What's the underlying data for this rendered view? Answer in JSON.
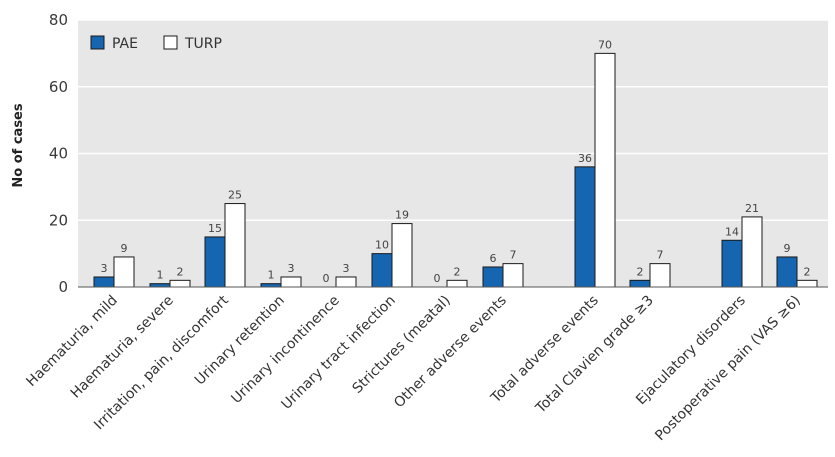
{
  "chart_data": {
    "type": "bar",
    "ylabel": "No of cases",
    "ylim": [
      0,
      80
    ],
    "yticks": [
      0,
      20,
      40,
      60,
      80
    ],
    "grid": true,
    "legend_position": "top-left",
    "categories": [
      "Haematuria, mild",
      "Haematuria, severe",
      "Irritation, pain, discomfort",
      "Urinary retention",
      "Urinary incontinence",
      "Urinary tract infection",
      "Strictures (meatal)",
      "Other adverse events",
      "Total adverse events",
      "Total Clavien grade ≥3",
      "Ejaculatory disorders",
      "Postoperative pain (VAS ≥6)"
    ],
    "series": [
      {
        "name": "PAE",
        "color": "#1565b0",
        "values": [
          3,
          1,
          15,
          1,
          0,
          10,
          0,
          6,
          36,
          2,
          14,
          9
        ]
      },
      {
        "name": "TURP",
        "color": "#ffffff",
        "values": [
          9,
          2,
          25,
          3,
          3,
          19,
          2,
          7,
          70,
          7,
          21,
          2
        ]
      }
    ],
    "plot_background": "#e7e7e7",
    "grid_color": "#ffffff"
  }
}
